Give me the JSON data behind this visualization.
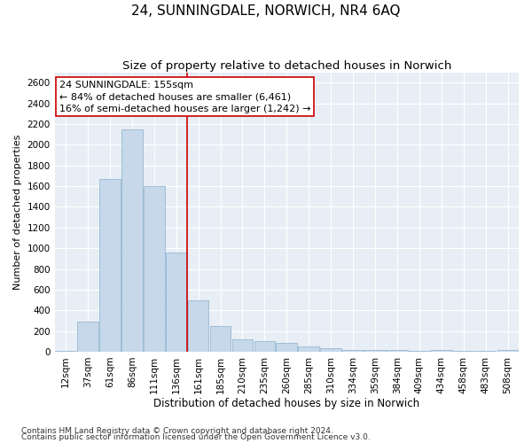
{
  "title": "24, SUNNINGDALE, NORWICH, NR4 6AQ",
  "subtitle": "Size of property relative to detached houses in Norwich",
  "xlabel": "Distribution of detached houses by size in Norwich",
  "ylabel": "Number of detached properties",
  "bar_color": "#c6d8ea",
  "bar_edge_color": "#8ab0cc",
  "bar_width": 0.95,
  "property_line_color": "#cc0000",
  "property_line_idx": 6,
  "annotation_text": "24 SUNNINGDALE: 155sqm\n← 84% of detached houses are smaller (6,461)\n16% of semi-detached houses are larger (1,242) →",
  "annotation_box_color": "#cc0000",
  "footnote1": "Contains HM Land Registry data © Crown copyright and database right 2024.",
  "footnote2": "Contains public sector information licensed under the Open Government Licence v3.0.",
  "ylim": [
    0,
    2700
  ],
  "yticks": [
    0,
    200,
    400,
    600,
    800,
    1000,
    1200,
    1400,
    1600,
    1800,
    2000,
    2200,
    2400,
    2600
  ],
  "categories": [
    "12sqm",
    "37sqm",
    "61sqm",
    "86sqm",
    "111sqm",
    "136sqm",
    "161sqm",
    "185sqm",
    "210sqm",
    "235sqm",
    "260sqm",
    "285sqm",
    "310sqm",
    "334sqm",
    "359sqm",
    "384sqm",
    "409sqm",
    "434sqm",
    "458sqm",
    "483sqm",
    "508sqm"
  ],
  "values": [
    5,
    290,
    1670,
    2150,
    1600,
    960,
    500,
    245,
    120,
    100,
    85,
    50,
    30,
    20,
    15,
    15,
    10,
    15,
    5,
    5,
    15
  ],
  "background_color": "#e8eef5",
  "grid_color": "#ffffff",
  "title_fontsize": 11,
  "subtitle_fontsize": 9.5,
  "axis_label_fontsize": 8,
  "tick_fontsize": 7.5,
  "annotation_fontsize": 8,
  "footnote_fontsize": 6.5
}
